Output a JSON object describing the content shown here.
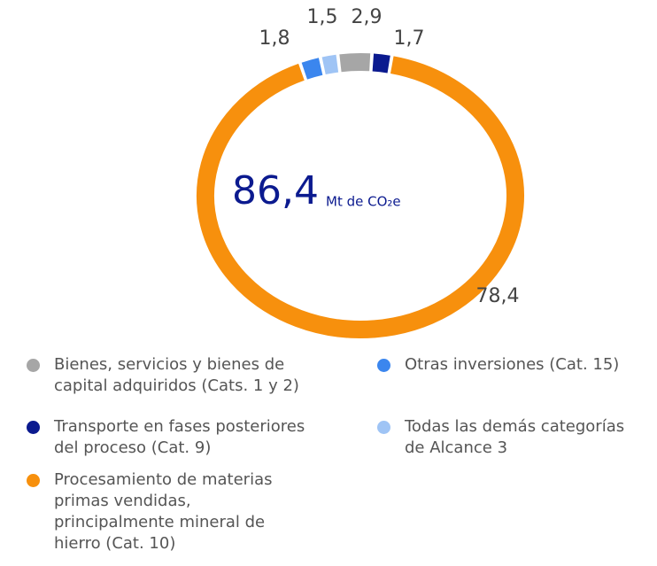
{
  "chart_data": {
    "type": "donut",
    "total": {
      "value": 86.4,
      "label": "86,4"
    },
    "unit": "Mt de CO₂e",
    "categories": [
      "Bienes, servicios y bienes de capital adquiridos (Cats. 1 y 2)",
      "Transporte en fases posteriores del proceso (Cat. 9)",
      "Procesamiento de materias primas vendidas, principalmente mineral de hierro (Cat. 10)",
      "Otras inversiones (Cat. 15)",
      "Todas las demás categorías de Alcance 3"
    ],
    "values": [
      2.9,
      1.7,
      78.4,
      1.8,
      1.5
    ],
    "value_labels": [
      "2,9",
      "1,7",
      "78,4",
      "1,8",
      "1,5"
    ],
    "colors": [
      "#a6a6a6",
      "#0b1a8f",
      "#f7900d",
      "#3b86ee",
      "#9fc4f5"
    ]
  }
}
